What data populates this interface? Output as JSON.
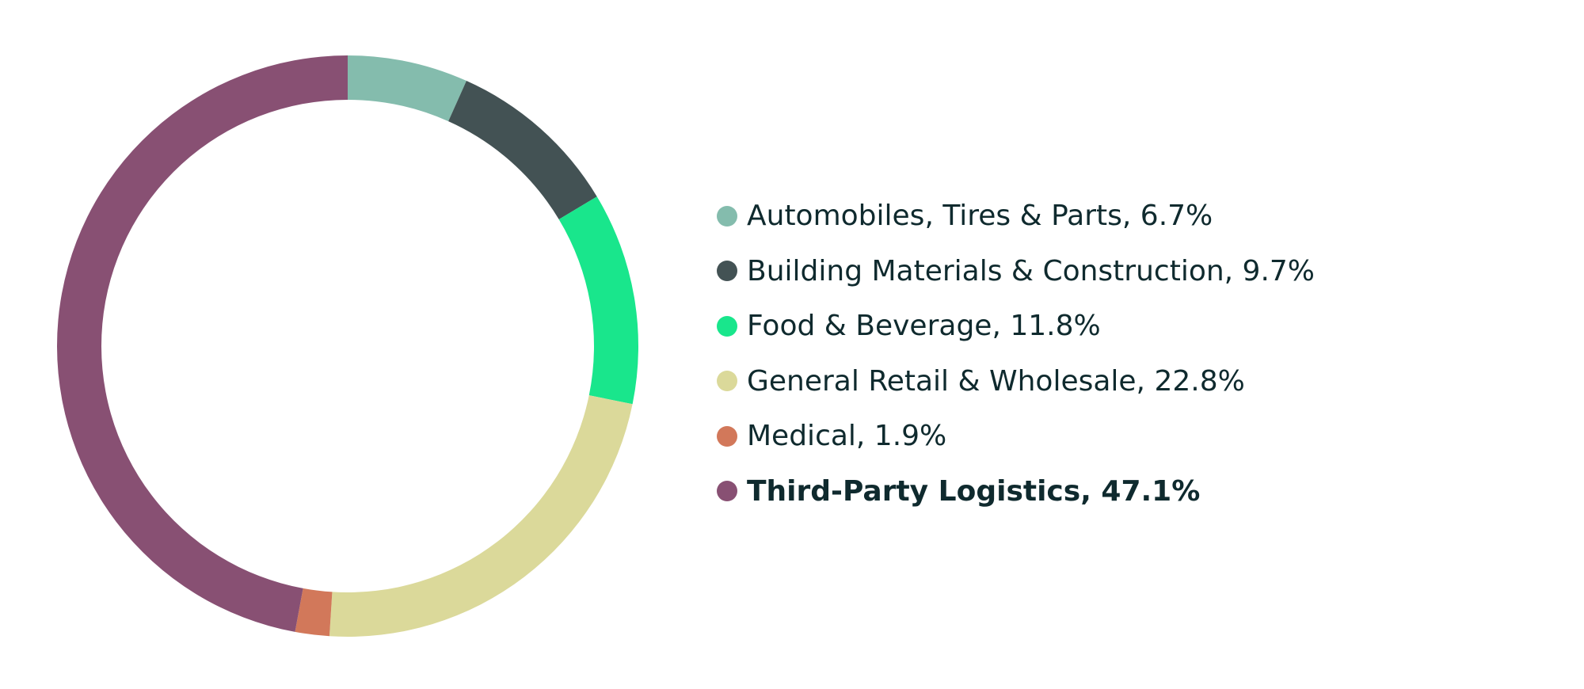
{
  "chart_data": {
    "type": "pie",
    "style": "donut",
    "legend_position": "right",
    "slices": [
      {
        "label": "Automobiles, Tires & Parts, 6.7%",
        "value": 6.7,
        "color": "#84bcad"
      },
      {
        "label": "Building Materials & Construction, 9.7%",
        "value": 9.7,
        "color": "#435254"
      },
      {
        "label": "Food & Beverage, 11.8%",
        "value": 11.8,
        "color": "#19e68c"
      },
      {
        "label": "General Retail & Wholesale, 22.8%",
        "value": 22.8,
        "color": "#dbd99a"
      },
      {
        "label": "Medical, 1.9%",
        "value": 1.9,
        "color": "#d2785a"
      },
      {
        "label": "Third-Party Logistics, 47.1%",
        "value": 47.1,
        "color": "#885073",
        "emphasis": true
      }
    ]
  }
}
